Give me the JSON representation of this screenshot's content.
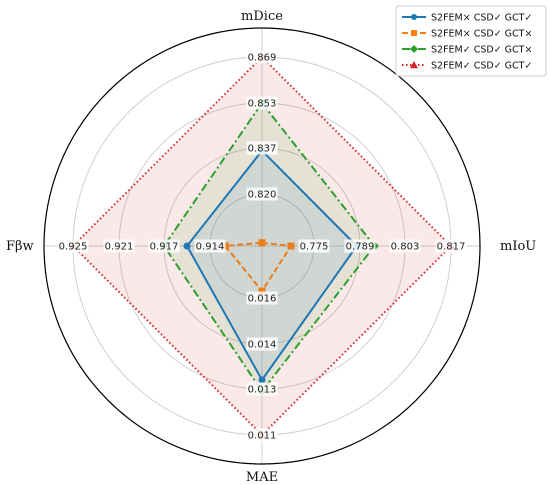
{
  "chart_data": {
    "type": "radar",
    "grid": true,
    "legend_position": "top-right",
    "axes": [
      {
        "name": "mDice",
        "label": "mDice",
        "direction": "up",
        "ticks": [
          "0.820",
          "0.837",
          "0.853",
          "0.869"
        ]
      },
      {
        "name": "mIoU",
        "label": "mIoU",
        "direction": "right",
        "ticks": [
          "0.775",
          "0.789",
          "0.803",
          "0.817"
        ]
      },
      {
        "name": "MAE",
        "label": "MAE",
        "direction": "down",
        "ticks": [
          "0.016",
          "0.014",
          "0.013",
          "0.011"
        ]
      },
      {
        "name": "Fbw",
        "label": "Fβw",
        "direction": "left",
        "ticks": [
          "0.914",
          "0.917",
          "0.921",
          "0.925"
        ]
      }
    ],
    "series": [
      {
        "name": "S2FEM× CSD✓ GCT✓",
        "color": "#1f77b4",
        "line_style": "solid",
        "marker": "circle",
        "fill": true,
        "values": [
          0.836,
          0.788,
          0.0132,
          0.9155
        ]
      },
      {
        "name": "S2FEM× CSD✓ GCT×",
        "color": "#ff7f0e",
        "line_style": "dashed",
        "marker": "square",
        "fill": false,
        "values": [
          0.802,
          0.768,
          0.0163,
          0.913
        ]
      },
      {
        "name": "S2FEM✓ CSD✓ GCT×",
        "color": "#2ca02c",
        "line_style": "dashdot",
        "marker": "diamond",
        "fill": true,
        "values": [
          0.853,
          0.7935,
          0.0129,
          0.917
        ]
      },
      {
        "name": "S2FEM✓ CSD✓ GCT✓",
        "color": "#d62728",
        "line_style": "dotted",
        "marker": "triangle",
        "fill": true,
        "values": [
          0.869,
          0.817,
          0.011,
          0.925
        ]
      }
    ]
  }
}
